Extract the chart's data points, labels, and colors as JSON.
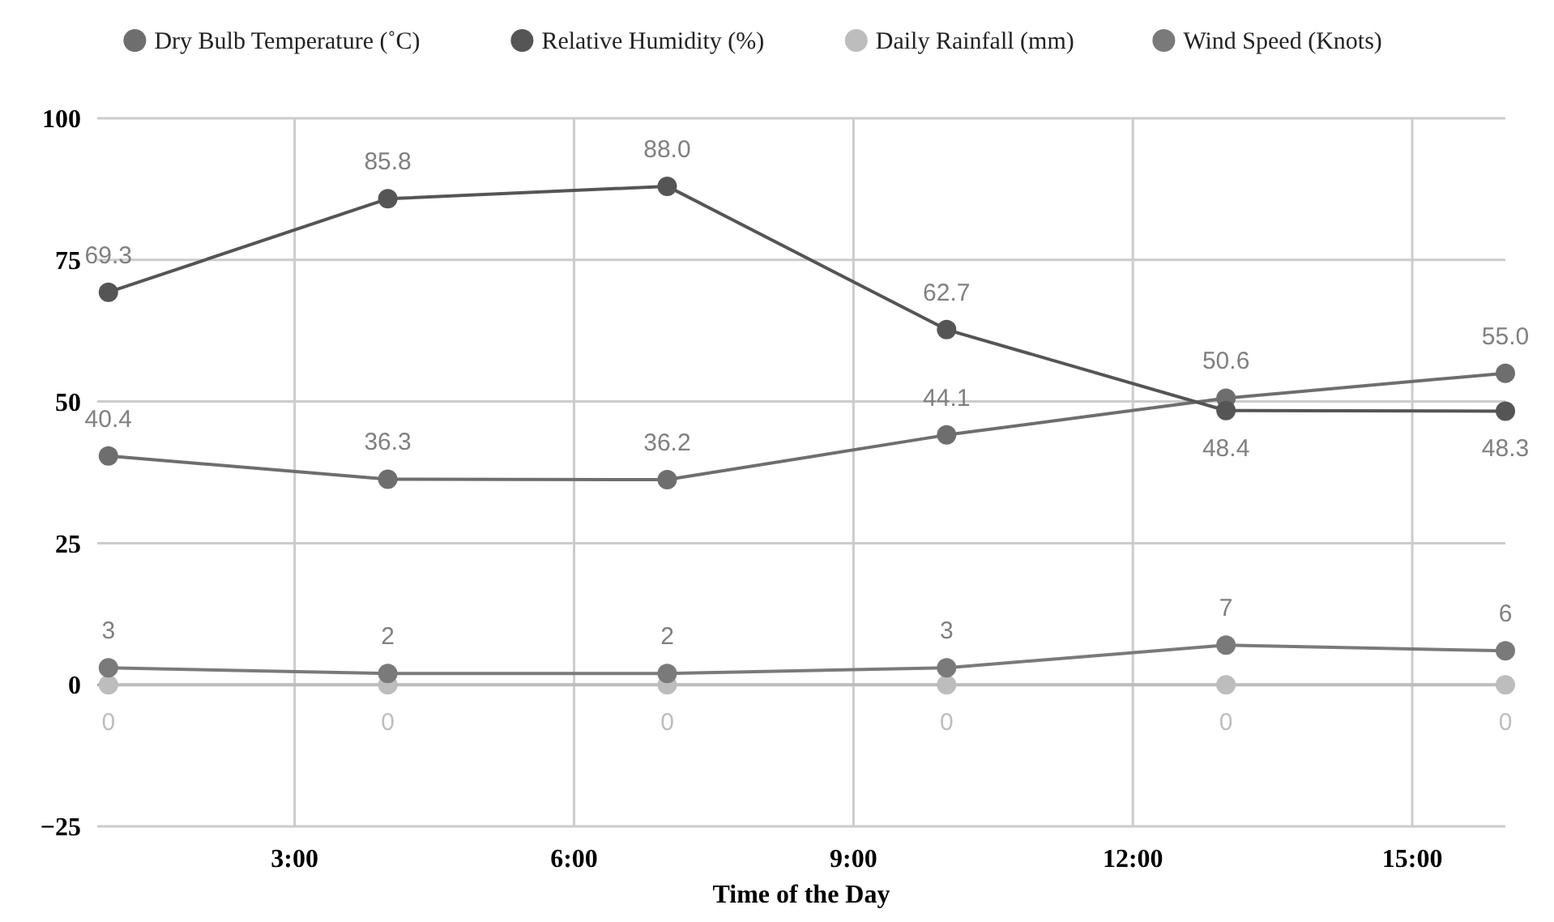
{
  "chart_data": {
    "type": "line",
    "xlabel": "Time of the Day",
    "x": [
      1,
      4,
      7,
      10,
      13,
      16
    ],
    "series": [
      {
        "name": "Dry Bulb Temperature (˚C)",
        "color": "#6e6e6e",
        "values": [
          40.4,
          36.3,
          36.2,
          44.1,
          50.6,
          55.0
        ],
        "value_labels": [
          "40.4",
          "36.3",
          "36.2",
          "44.1",
          "50.6",
          "55.0"
        ]
      },
      {
        "name": "Relative Humidity (%)",
        "color": "#555555",
        "values": [
          69.3,
          85.8,
          88.0,
          62.7,
          48.4,
          48.3
        ],
        "value_labels": [
          "69.3",
          "85.8",
          "88.0",
          "62.7",
          "48.4",
          "48.3"
        ]
      },
      {
        "name": "Daily Rainfall (mm)",
        "color": "#bdbdbd",
        "values": [
          0,
          0,
          0,
          0,
          0,
          0
        ],
        "value_labels": [
          "0",
          "0",
          "0",
          "0",
          "0",
          "0"
        ]
      },
      {
        "name": "Wind Speed (Knots)",
        "color": "#7a7a7a",
        "values": [
          3,
          2,
          2,
          3,
          7,
          6
        ],
        "value_labels": [
          "3",
          "2",
          "2",
          "3",
          "7",
          "6"
        ]
      }
    ],
    "xlim": [
      0.88,
      16
    ],
    "xticks": [
      {
        "value": 3,
        "label": "3:00"
      },
      {
        "value": 6,
        "label": "6:00"
      },
      {
        "value": 9,
        "label": "9:00"
      },
      {
        "value": 12,
        "label": "12:00"
      },
      {
        "value": 15,
        "label": "15:00"
      }
    ],
    "ylim": [
      -25,
      100
    ],
    "yticks": [
      -25,
      0,
      25,
      50,
      75,
      100
    ],
    "grid": true,
    "legend": "top",
    "marker": "circle",
    "line_style": "solid"
  }
}
